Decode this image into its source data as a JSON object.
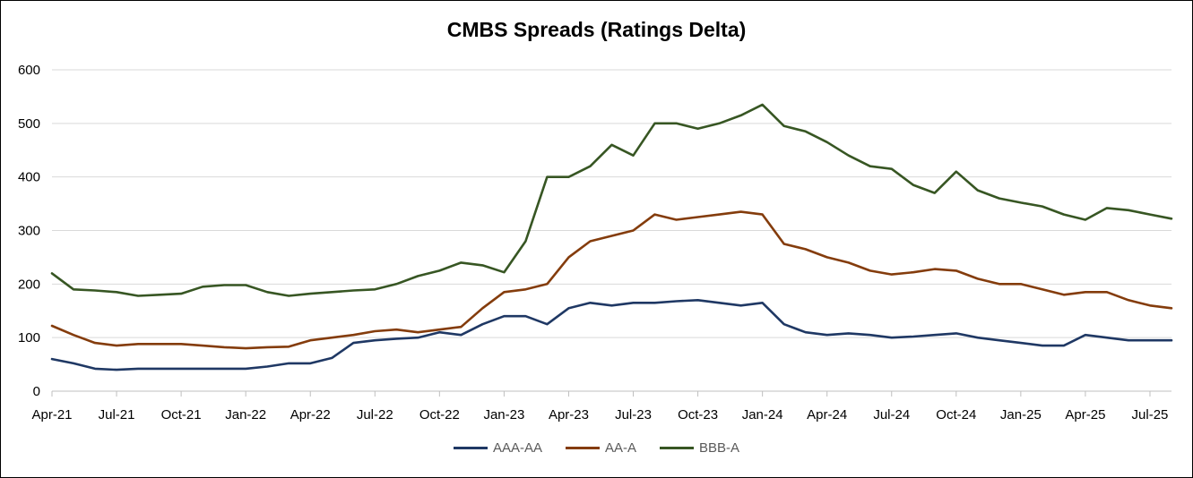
{
  "chart_data": {
    "type": "line",
    "title": "CMBS Spreads (Ratings Delta)",
    "xlabel": "",
    "ylabel": "",
    "ylim": [
      0,
      600
    ],
    "yticks": [
      "0",
      "100",
      "200",
      "300",
      "400",
      "500",
      "600"
    ],
    "xticks": [
      "Apr-21",
      "Jul-21",
      "Oct-21",
      "Jan-22",
      "Apr-22",
      "Jul-22",
      "Oct-22",
      "Jan-23",
      "Apr-23",
      "Jul-23",
      "Oct-23",
      "Jan-24",
      "Apr-24",
      "Jul-24",
      "Oct-24",
      "Jan-25",
      "Apr-25",
      "Jul-25"
    ],
    "x": [
      "Apr-21",
      "May-21",
      "Jun-21",
      "Jul-21",
      "Aug-21",
      "Sep-21",
      "Oct-21",
      "Nov-21",
      "Dec-21",
      "Jan-22",
      "Feb-22",
      "Mar-22",
      "Apr-22",
      "May-22",
      "Jun-22",
      "Jul-22",
      "Aug-22",
      "Sep-22",
      "Oct-22",
      "Nov-22",
      "Dec-22",
      "Jan-23",
      "Feb-23",
      "Mar-23",
      "Apr-23",
      "May-23",
      "Jun-23",
      "Jul-23",
      "Aug-23",
      "Sep-23",
      "Oct-23",
      "Nov-23",
      "Dec-23",
      "Jan-24",
      "Feb-24",
      "Mar-24",
      "Apr-24",
      "May-24",
      "Jun-24",
      "Jul-24",
      "Aug-24",
      "Sep-24",
      "Oct-24",
      "Nov-24",
      "Dec-24",
      "Jan-25",
      "Feb-25",
      "Mar-25",
      "Apr-25",
      "May-25",
      "Jun-25",
      "Jul-25",
      "Aug-25"
    ],
    "series": [
      {
        "name": "AAA-AA",
        "color": "#1f3864",
        "values": [
          60,
          52,
          42,
          40,
          42,
          42,
          42,
          42,
          42,
          42,
          46,
          52,
          52,
          62,
          90,
          95,
          98,
          100,
          110,
          105,
          125,
          140,
          140,
          125,
          155,
          165,
          160,
          165,
          165,
          168,
          170,
          165,
          160,
          165,
          125,
          110,
          105,
          108,
          105,
          100,
          102,
          105,
          108,
          100,
          95,
          90,
          85,
          85,
          105,
          100,
          95,
          95,
          95
        ]
      },
      {
        "name": "AA-A",
        "color": "#843c0c",
        "values": [
          122,
          105,
          90,
          85,
          88,
          88,
          88,
          85,
          82,
          80,
          82,
          83,
          95,
          100,
          105,
          112,
          115,
          110,
          115,
          120,
          155,
          185,
          190,
          200,
          250,
          280,
          290,
          300,
          330,
          320,
          325,
          330,
          335,
          330,
          275,
          265,
          250,
          240,
          225,
          218,
          222,
          228,
          225,
          210,
          200,
          200,
          190,
          180,
          185,
          185,
          170,
          160,
          155
        ]
      },
      {
        "name": "BBB-A",
        "color": "#375623",
        "values": [
          220,
          190,
          188,
          185,
          178,
          180,
          182,
          195,
          198,
          198,
          185,
          178,
          182,
          185,
          188,
          190,
          200,
          215,
          225,
          240,
          235,
          222,
          280,
          400,
          400,
          420,
          460,
          440,
          500,
          500,
          490,
          500,
          515,
          535,
          495,
          485,
          465,
          440,
          420,
          415,
          385,
          370,
          410,
          375,
          360,
          352,
          345,
          330,
          320,
          342,
          338,
          330,
          322
        ]
      }
    ],
    "grid": true,
    "legend_position": "bottom"
  }
}
